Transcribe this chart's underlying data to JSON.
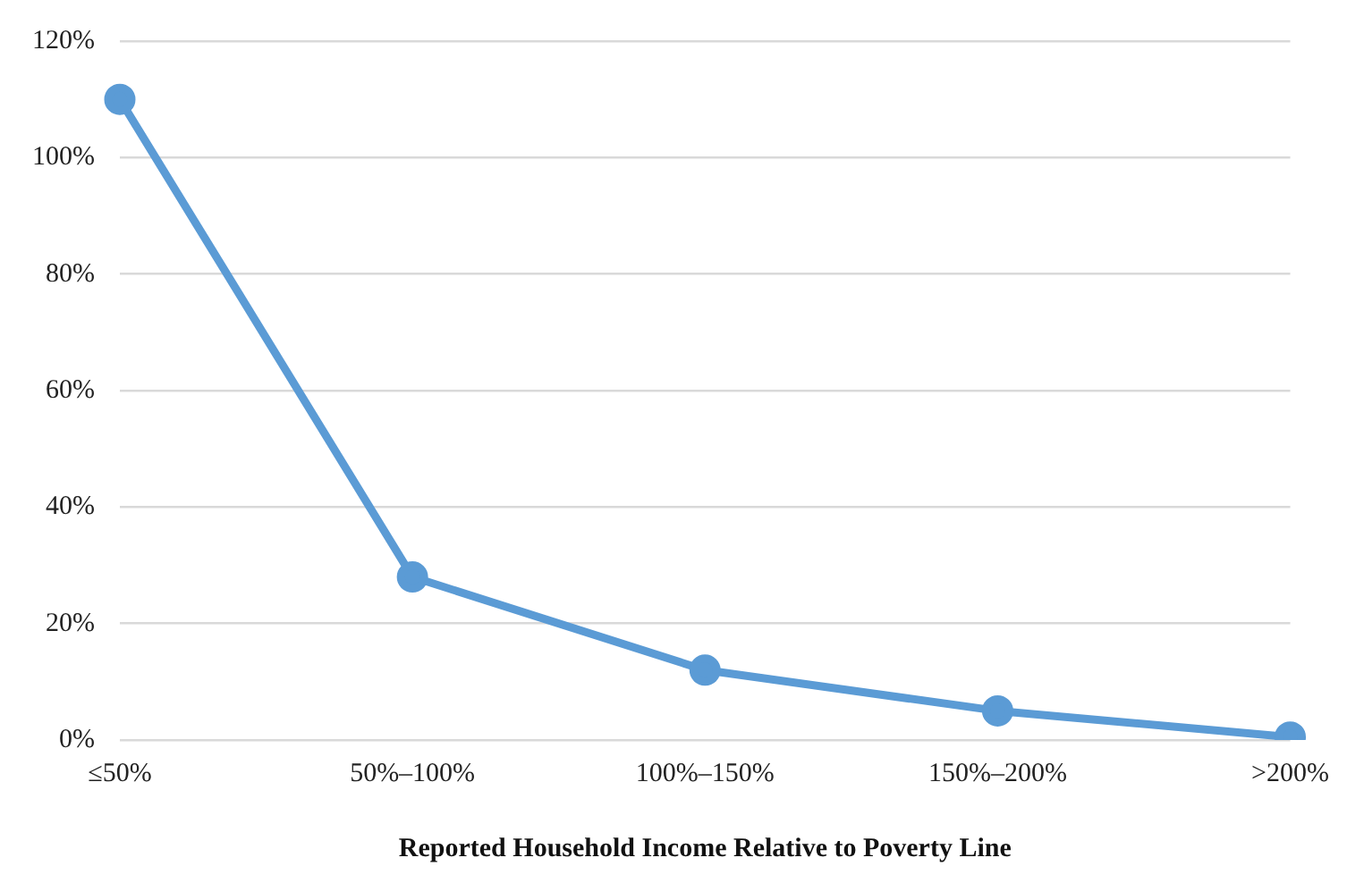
{
  "chart_data": {
    "type": "line",
    "xlabel": "Reported Household Income Relative to Poverty Line",
    "categories": [
      "≤50%",
      "50%–100%",
      "100%–150%",
      "150%–200%",
      ">200%"
    ],
    "series": [
      {
        "color": "#5b9bd5",
        "values": [
          110,
          28,
          12,
          5,
          0.5
        ]
      }
    ],
    "ylim": [
      0,
      120
    ],
    "yticks": [
      {
        "value": 0,
        "label": "0%"
      },
      {
        "value": 20,
        "label": "20%"
      },
      {
        "value": 40,
        "label": "40%"
      },
      {
        "value": 60,
        "label": "60%"
      },
      {
        "value": 80,
        "label": "80%"
      },
      {
        "value": 100,
        "label": "100%"
      },
      {
        "value": 120,
        "label": "120%"
      }
    ],
    "grid": "y",
    "legend": false,
    "marker": "circle",
    "line_style": "solid"
  }
}
